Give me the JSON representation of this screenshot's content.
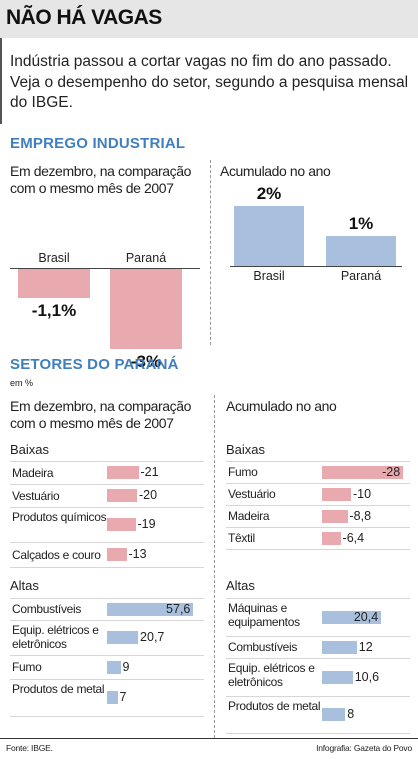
{
  "header": {
    "title": "NÃO HÁ VAGAS",
    "intro": "Indústria passou a cortar vagas no fim do ano passado. Veja o desempenho do setor, segundo a pesquisa mensal do IBGE."
  },
  "emprego": {
    "section_title": "EMPREGO INDUSTRIAL",
    "left_subtitle_1": "Em dezembro, na comparação",
    "left_subtitle_2": "com o mesmo mês de 2007",
    "right_subtitle": "Acumulado no ano"
  },
  "setores": {
    "section_title": "SETORES DO PARANÁ",
    "unit": "em %",
    "left_subtitle_1": "Em dezembro, na comparação",
    "left_subtitle_2": "com o mesmo mês de 2007",
    "right_subtitle": "Acumulado no ano",
    "baixas_label": "Baixas",
    "altas_label": "Altas"
  },
  "footer": {
    "source": "Fonte: IBGE.",
    "credit": "Infografia: Gazeta do Povo"
  },
  "colors": {
    "positive": "#a8c0dd",
    "negative": "#e8aaaf",
    "accent": "#3f7fbf"
  },
  "chart_data": [
    {
      "type": "bar",
      "title": "Em dezembro, na comparação com o mesmo mês de 2007",
      "categories": [
        "Brasil",
        "Paraná"
      ],
      "values": [
        -1.1,
        -3
      ],
      "labels": [
        "-1,1%",
        "-3%"
      ]
    },
    {
      "type": "bar",
      "title": "Acumulado no ano",
      "categories": [
        "Brasil",
        "Paraná"
      ],
      "values": [
        2,
        1
      ],
      "labels": [
        "2%",
        "1%"
      ]
    },
    {
      "type": "bar",
      "orientation": "horizontal",
      "title": "Em dezembro, na comparação com o mesmo mês de 2007",
      "unit": "em %",
      "groups": [
        {
          "name": "Baixas",
          "rows": [
            {
              "label": "Madeira",
              "value": -21,
              "text": "-21"
            },
            {
              "label": "Vestuário",
              "value": -20,
              "text": "-20"
            },
            {
              "label": "Produtos químicos",
              "value": -19,
              "text": "-19"
            },
            {
              "label": "Calçados e couro",
              "value": -13,
              "text": "-13"
            }
          ]
        },
        {
          "name": "Altas",
          "rows": [
            {
              "label": "Combustíveis",
              "value": 57.6,
              "text": "57,6"
            },
            {
              "label": "Equip. elétricos e eletrônicos",
              "value": 20.7,
              "text": "20,7"
            },
            {
              "label": "Fumo",
              "value": 9,
              "text": "9"
            },
            {
              "label": "Produtos de metal",
              "value": 7,
              "text": "7"
            }
          ]
        }
      ]
    },
    {
      "type": "bar",
      "orientation": "horizontal",
      "title": "Acumulado no ano",
      "unit": "em %",
      "groups": [
        {
          "name": "Baixas",
          "rows": [
            {
              "label": "Fumo",
              "value": -28,
              "text": "-28"
            },
            {
              "label": "Vestuário",
              "value": -10,
              "text": "-10"
            },
            {
              "label": "Madeira",
              "value": -8.8,
              "text": "-8,8"
            },
            {
              "label": "Têxtil",
              "value": -6.4,
              "text": "-6,4"
            }
          ]
        },
        {
          "name": "Altas",
          "rows": [
            {
              "label": "Máquinas e equipamentos",
              "value": 20.4,
              "text": "20,4"
            },
            {
              "label": "Combustíveis",
              "value": 12,
              "text": "12"
            },
            {
              "label": "Equip. elétricos e eletrônicos",
              "value": 10.6,
              "text": "10,6"
            },
            {
              "label": "Produtos de metal",
              "value": 8,
              "text": "8"
            }
          ]
        }
      ]
    }
  ]
}
